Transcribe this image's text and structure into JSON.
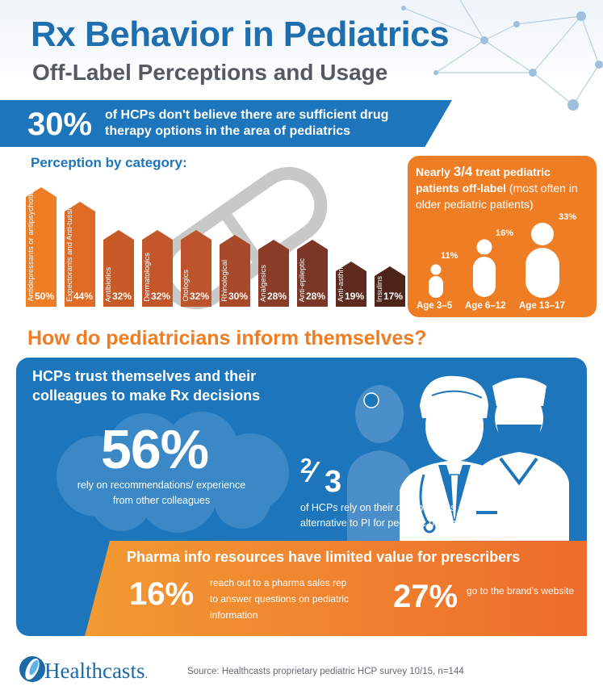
{
  "header": {
    "title": "Rx Behavior in Pediatrics",
    "subtitle": "Off-Label Perceptions and Usage"
  },
  "banner": {
    "percent": "30%",
    "text": "of HCPs don't believe there are sufficient drug therapy options in the area of pediatrics"
  },
  "perception": {
    "title": "Perception by category:"
  },
  "chart_data": {
    "type": "bar",
    "categories": [
      "Antidepressants or antipsychotics",
      "Expectorants and Anti-tussives",
      "Antibiotics",
      "Dermatologics",
      "Otologics",
      "Rhinological",
      "Analgesics",
      "Anti-epileptic",
      "Anti-asthmatics",
      "Insulins"
    ],
    "values": [
      50,
      44,
      32,
      32,
      32,
      30,
      28,
      28,
      19,
      17
    ],
    "value_labels": [
      "50%",
      "44%",
      "32%",
      "32%",
      "32%",
      "30%",
      "28%",
      "28%",
      "19%",
      "17%"
    ],
    "colors": [
      "#ef7d23",
      "#e06b26",
      "#c85a28",
      "#c3572a",
      "#bd542b",
      "#a8492a",
      "#8a3c28",
      "#7c3626",
      "#5e2b1e",
      "#4e2318"
    ],
    "ylim": [
      0,
      50
    ]
  },
  "offlabel": {
    "title_bold_1": "Nearly ",
    "title_frac": "3/4",
    "title_bold_2": " treat pediatric patients off-label",
    "title_rest": " (most often in older pediatric patients)",
    "groups": [
      {
        "age": "Age 3–5",
        "percent": "11%",
        "value": 11
      },
      {
        "age": "Age 6–12",
        "percent": "16%",
        "value": 16
      },
      {
        "age": "Age 13–17",
        "percent": "33%",
        "value": 33
      }
    ]
  },
  "section2": {
    "heading": "How do pediatricians inform themselves?",
    "trust_text": "HCPs trust themselves and their colleagues to make Rx decisions",
    "stat56": "56%",
    "stat56_text": "rely on recommendations/ experience from other colleagues",
    "frac_num": "2",
    "frac_slash": "⁄",
    "frac_den": "3",
    "stat23_text": "of HCPs rely on their own previous experience as an alternative to PI for pediatric patients"
  },
  "pharma": {
    "title": "Pharma info resources have limited value for prescribers",
    "stat16": "16%",
    "stat16_text": "reach out to a pharma sales rep to answer questions on pediatric information",
    "stat27": "27%",
    "stat27_text": "go to the brand's website"
  },
  "footer": {
    "logo": "Healthcasts",
    "logo_mark": ".",
    "source": "Source: Healthcasts proprietary pediatric HCP survey 10/15, n=144"
  }
}
